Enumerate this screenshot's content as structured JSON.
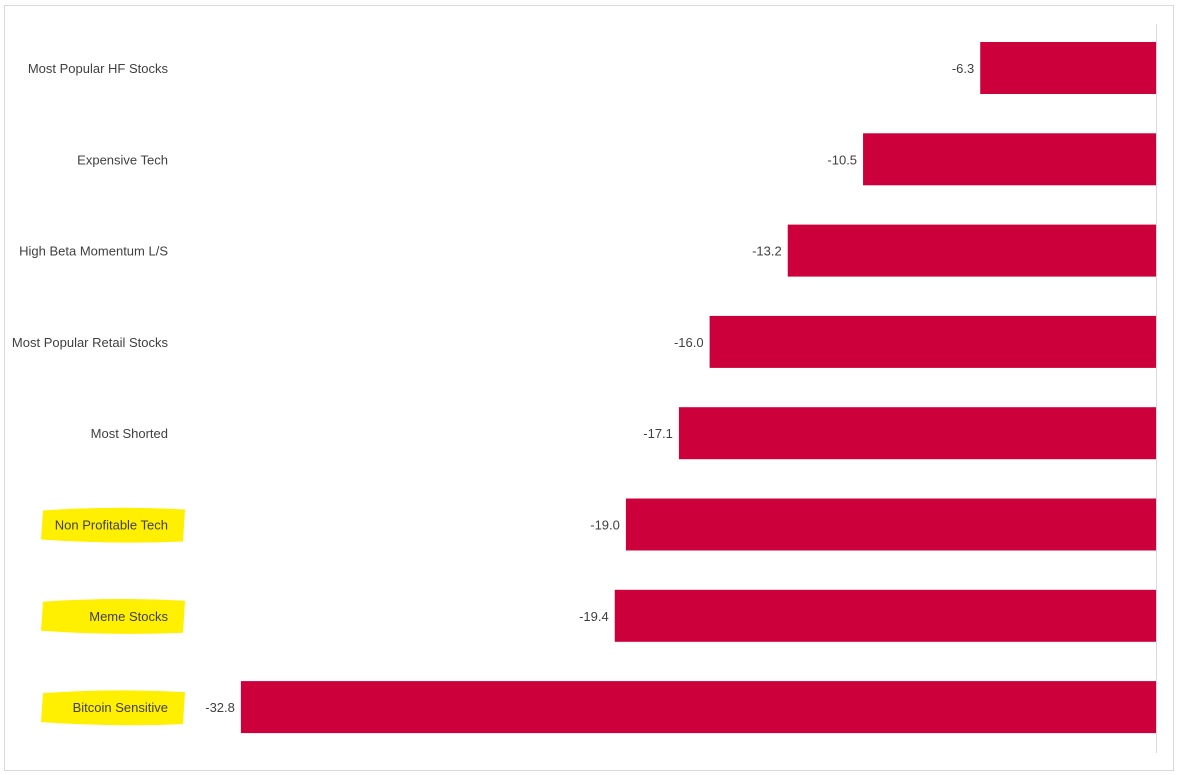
{
  "chart_data": {
    "type": "bar",
    "orientation": "horizontal",
    "title": "",
    "xlabel": "",
    "ylabel": "",
    "categories": [
      "Most Popular HF Stocks",
      "Expensive Tech",
      "High Beta Momentum L/S",
      "Most Popular Retail Stocks",
      "Most Shorted",
      "Non Profitable Tech",
      "Meme Stocks",
      "Bitcoin Sensitive"
    ],
    "values": [
      -6.3,
      -10.5,
      -13.2,
      -16.0,
      -17.1,
      -19.0,
      -19.4,
      -32.8
    ],
    "value_labels": [
      "-6.3",
      "-10.5",
      "-13.2",
      "-16.0",
      "-17.1",
      "-19.0",
      "-19.4",
      "-32.8"
    ],
    "highlighted_categories": [
      "Non Profitable Tech",
      "Meme Stocks",
      "Bitcoin Sensitive"
    ],
    "xlim": [
      -32.8,
      0
    ],
    "grid": false,
    "legend": "none",
    "colors": {
      "bar": "#cc003a",
      "highlight": "#ffef00",
      "label_text": "#404040",
      "axis_line": "#d9d9d9"
    }
  }
}
